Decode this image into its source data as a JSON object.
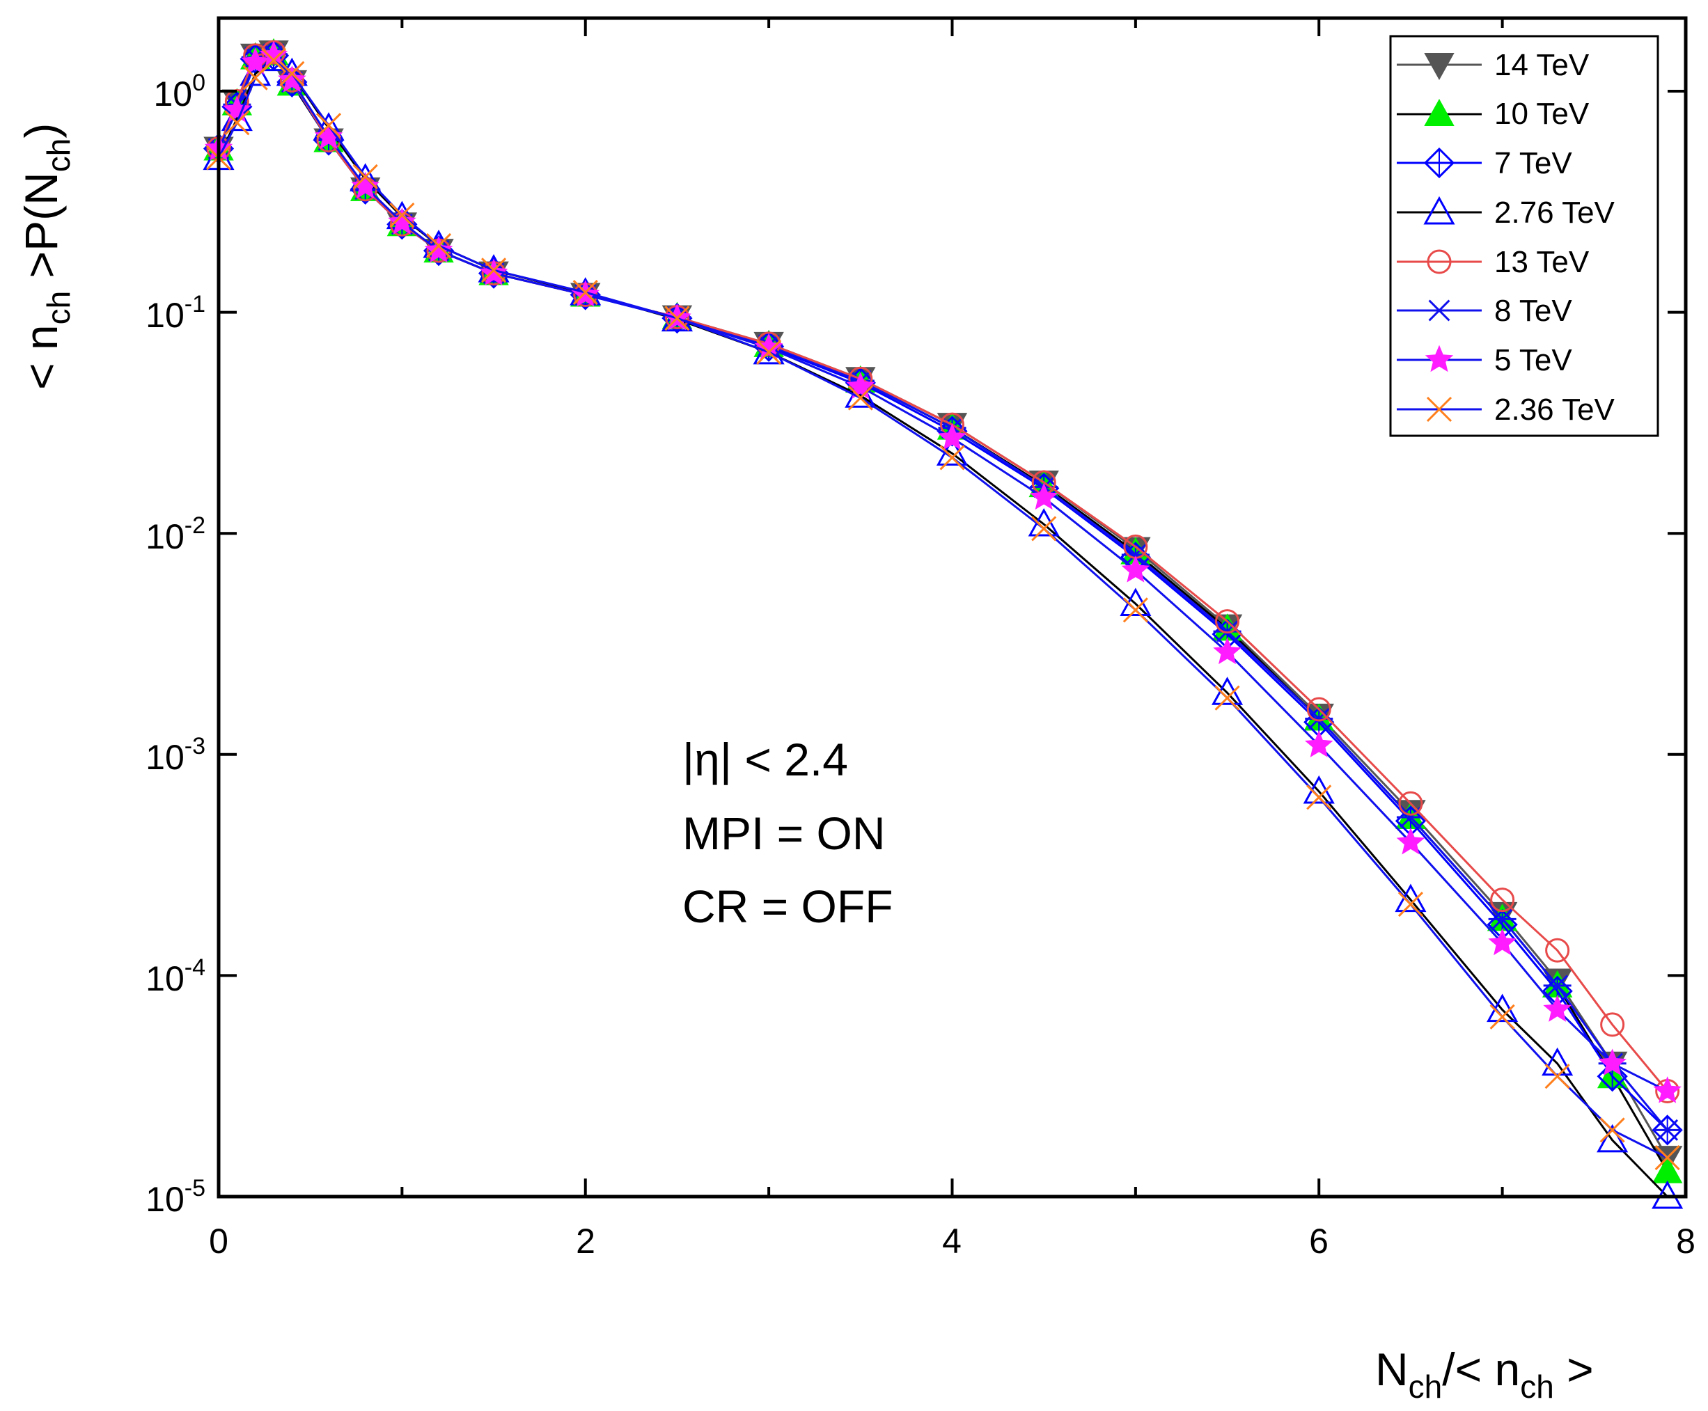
{
  "chart_data": {
    "type": "line",
    "xlabel": {
      "main": "N",
      "sub": "ch",
      "mid": "/< n",
      "sub2": "ch",
      "end": " >"
    },
    "ylabel": {
      "a": "< n",
      "sub1": "ch",
      "b": " >P(N",
      "sub2": "ch",
      "c": ")"
    },
    "xlim": [
      0,
      8
    ],
    "ylim": [
      1e-05,
      2
    ],
    "yscale": "log",
    "x_ticks": [
      "0",
      "2",
      "4",
      "6",
      "8"
    ],
    "y_ticks": [
      {
        "value": 1,
        "base": "10",
        "exp": "0"
      },
      {
        "value": 0.1,
        "base": "10",
        "exp": "-1"
      },
      {
        "value": 0.01,
        "base": "10",
        "exp": "-2"
      },
      {
        "value": 0.001,
        "base": "10",
        "exp": "-3"
      },
      {
        "value": 0.0001,
        "base": "10",
        "exp": "-4"
      },
      {
        "value": 1e-05,
        "base": "10",
        "exp": "-5"
      }
    ],
    "annotation": [
      "|η| < 2.4",
      "MPI = ON",
      "CR  = OFF"
    ],
    "legend_position": "top-right",
    "x": [
      0.0,
      0.1,
      0.2,
      0.3,
      0.4,
      0.6,
      0.8,
      1.0,
      1.2,
      1.5,
      2.0,
      2.5,
      3.0,
      3.5,
      4.0,
      4.5,
      5.0,
      5.5,
      6.0,
      6.5,
      7.0,
      7.3,
      7.6,
      7.9
    ],
    "series": [
      {
        "name": "14 TeV",
        "marker": "triangle-down-filled",
        "color": "#555555",
        "line": "#555555",
        "values": [
          0.55,
          0.9,
          1.45,
          1.5,
          1.1,
          0.6,
          0.36,
          0.25,
          0.19,
          0.15,
          0.12,
          0.095,
          0.072,
          0.05,
          0.031,
          0.017,
          0.0085,
          0.0038,
          0.0015,
          0.00055,
          0.00019,
          9.5e-05,
          4e-05,
          1.5e-05
        ]
      },
      {
        "name": "10 TeV",
        "marker": "triangle-up-filled",
        "color": "#00ee00",
        "line": "#000000",
        "values": [
          0.55,
          0.88,
          1.42,
          1.48,
          1.08,
          0.6,
          0.36,
          0.25,
          0.19,
          0.15,
          0.12,
          0.095,
          0.071,
          0.049,
          0.03,
          0.0165,
          0.0082,
          0.0037,
          0.00145,
          0.00052,
          0.00018,
          9e-05,
          3.5e-05,
          1.3e-05
        ]
      },
      {
        "name": "7 TeV",
        "marker": "diamond-open",
        "color": "#0000ff",
        "line": "#0000ff",
        "values": [
          0.55,
          0.85,
          1.4,
          1.45,
          1.1,
          0.6,
          0.36,
          0.25,
          0.19,
          0.15,
          0.12,
          0.094,
          0.07,
          0.048,
          0.029,
          0.016,
          0.0078,
          0.0035,
          0.0014,
          0.0005,
          0.00017,
          8.5e-05,
          3.5e-05,
          2e-05
        ]
      },
      {
        "name": "2.76 TeV",
        "marker": "triangle-up-open",
        "color": "#0000ff",
        "line": "#000000",
        "values": [
          0.5,
          0.75,
          1.2,
          1.4,
          1.2,
          0.68,
          0.4,
          0.27,
          0.2,
          0.155,
          0.122,
          0.093,
          0.066,
          0.042,
          0.023,
          0.011,
          0.0048,
          0.0019,
          0.00068,
          0.00022,
          7e-05,
          4e-05,
          1.8e-05,
          1e-05
        ]
      },
      {
        "name": "13 TeV",
        "marker": "circle-open",
        "color": "#e84a4a",
        "line": "#e84a4a",
        "values": [
          0.55,
          0.9,
          1.45,
          1.5,
          1.12,
          0.6,
          0.36,
          0.25,
          0.19,
          0.15,
          0.12,
          0.095,
          0.072,
          0.05,
          0.031,
          0.017,
          0.0087,
          0.004,
          0.0016,
          0.0006,
          0.00022,
          0.00013,
          6e-05,
          3e-05
        ]
      },
      {
        "name": "8 TeV",
        "marker": "asterisk",
        "color": "#1010ee",
        "line": "#1010ee",
        "values": [
          0.55,
          0.87,
          1.42,
          1.47,
          1.1,
          0.6,
          0.36,
          0.25,
          0.19,
          0.15,
          0.12,
          0.095,
          0.071,
          0.049,
          0.03,
          0.0162,
          0.008,
          0.0036,
          0.00145,
          0.00052,
          0.00018,
          9e-05,
          4e-05,
          2e-05
        ]
      },
      {
        "name": "5 TeV",
        "marker": "star-filled",
        "color": "#ff1cff",
        "line": "#1010ee",
        "values": [
          0.55,
          0.82,
          1.35,
          1.45,
          1.12,
          0.62,
          0.37,
          0.255,
          0.19,
          0.15,
          0.12,
          0.094,
          0.069,
          0.046,
          0.027,
          0.0145,
          0.0068,
          0.0029,
          0.0011,
          0.0004,
          0.00014,
          7e-05,
          4e-05,
          3e-05
        ]
      },
      {
        "name": "2.36 TeV",
        "marker": "x-cross",
        "color": "#ff7f1c",
        "line": "#1010ee",
        "values": [
          0.5,
          0.72,
          1.15,
          1.38,
          1.2,
          0.7,
          0.41,
          0.275,
          0.2,
          0.155,
          0.123,
          0.094,
          0.066,
          0.041,
          0.022,
          0.0105,
          0.0045,
          0.0018,
          0.00064,
          0.00021,
          6.5e-05,
          3.5e-05,
          2e-05,
          1.5e-05
        ]
      }
    ]
  }
}
